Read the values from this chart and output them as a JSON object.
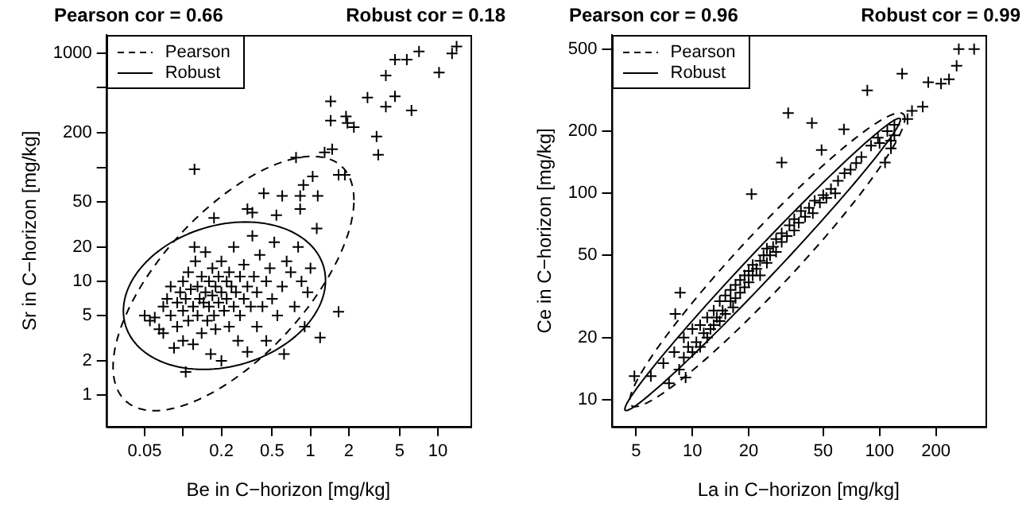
{
  "chart_data": [
    {
      "type": "scatter",
      "annotations": [
        "Pearson cor = 0.66",
        "Robust cor = 0.18",
        "Pearson",
        "Robust"
      ],
      "xlabel": "Be in C−horizon [mg/kg]",
      "ylabel": "Sr in C−horizon [mg/kg]",
      "log": "xy",
      "xlim": [
        0.025,
        18
      ],
      "ylim": [
        0.53,
        1450
      ],
      "xticks": [
        0.05,
        {
          "value": 0.1,
          "label": null
        },
        0.2,
        0.5,
        1,
        2,
        5,
        10
      ],
      "yticks": [
        1,
        2,
        5,
        10,
        20,
        50,
        {
          "value": 100,
          "label": null
        },
        200,
        {
          "value": 500,
          "label": null
        },
        1000
      ],
      "grid": false,
      "marker": "cross",
      "series": [
        {
          "color": "#000000",
          "x": [
            14,
            12.9,
            10.2,
            7.1,
            5.7,
            4.6,
            3.9,
            4.6,
            3.9,
            6.2,
            2.8,
            1.44,
            1.44,
            1.9,
            1.95,
            2.19,
            3.3,
            3.4,
            1.48,
            1.29,
            1.66,
            1.86,
            0.123,
            1.66,
            1.19,
            0.105,
            0.77,
            1.04,
            0.88,
            0.43,
            0.6,
            1.14,
            0.83,
            0.83,
            0.32,
            0.35,
            0.54,
            1.12,
            0.175,
            0.123,
            0.05,
            0.055,
            0.06,
            0.065,
            0.07,
            0.07,
            0.075,
            0.08,
            0.08,
            0.085,
            0.09,
            0.09,
            0.095,
            0.1,
            0.1,
            0.1,
            0.105,
            0.11,
            0.11,
            0.115,
            0.12,
            0.12,
            0.125,
            0.13,
            0.13,
            0.135,
            0.14,
            0.14,
            0.145,
            0.15,
            0.15,
            0.155,
            0.16,
            0.16,
            0.165,
            0.17,
            0.17,
            0.175,
            0.18,
            0.18,
            0.19,
            0.19,
            0.2,
            0.2,
            0.2,
            0.21,
            0.22,
            0.22,
            0.23,
            0.23,
            0.24,
            0.25,
            0.25,
            0.26,
            0.27,
            0.28,
            0.28,
            0.3,
            0.3,
            0.32,
            0.32,
            0.34,
            0.35,
            0.36,
            0.38,
            0.38,
            0.4,
            0.42,
            0.45,
            0.45,
            0.48,
            0.5,
            0.52,
            0.55,
            0.6,
            0.62,
            0.65,
            0.7,
            0.75,
            0.8,
            0.85,
            0.9,
            0.95,
            1.0
          ],
          "values": [
            1150,
            1000,
            680,
            1040,
            880,
            880,
            640,
            420,
            340,
            315,
            410,
            380,
            257,
            280,
            245,
            225,
            186,
            129,
            144,
            135,
            86,
            86,
            96,
            5.4,
            3.2,
            1.6,
            122,
            83,
            70,
            59,
            56,
            56,
            56,
            43,
            43,
            40,
            38,
            29,
            36,
            20,
            5,
            4.5,
            4.8,
            3.8,
            6,
            3.5,
            7,
            5,
            9,
            2.6,
            6.5,
            4,
            8,
            10,
            5.5,
            3,
            7,
            12,
            4.5,
            8.5,
            6,
            2.8,
            15,
            9,
            5,
            7,
            11,
            3.5,
            6.5,
            18,
            8,
            4.5,
            10,
            6,
            2.3,
            13,
            7.5,
            5,
            9,
            3.8,
            11,
            6.5,
            15,
            8,
            2,
            5.5,
            10,
            7,
            12,
            4,
            9,
            6,
            20,
            8,
            3,
            11,
            5,
            7,
            14,
            9,
            2.4,
            6,
            25,
            11,
            8,
            4,
            17,
            6,
            10,
            3,
            13,
            7,
            22,
            5,
            9,
            2.3,
            15,
            12,
            6,
            20,
            10,
            4,
            8,
            13
          ]
        }
      ]
    },
    {
      "type": "scatter",
      "annotations": [
        "Pearson cor = 0.96",
        "Robust cor = 0.99",
        "Pearson",
        "Robust"
      ],
      "xlabel": "La in C−horizon [mg/kg]",
      "ylabel": "Ce in C−horizon [mg/kg]",
      "log": "xy",
      "xlim": [
        3.7,
        368
      ],
      "ylim": [
        7.4,
        585
      ],
      "xticks": [
        5,
        10,
        20,
        50,
        100,
        200
      ],
      "yticks": [
        10,
        20,
        50,
        100,
        200,
        500
      ],
      "grid": false,
      "marker": "cross",
      "series": [
        {
          "color": "#000000",
          "x": [
            320,
            265,
            258,
            235,
            213,
            182,
            132,
            86,
            32.5,
            43.5,
            64.5,
            49,
            30,
            20.7,
            8.6,
            8.1,
            9.2,
            4.9,
            107,
            98,
            170,
            149,
            141,
            120,
            115,
            6,
            7,
            7.5,
            8,
            8.5,
            9,
            9,
            9.5,
            10,
            10,
            10.5,
            11,
            11,
            11.5,
            12,
            12,
            12.5,
            13,
            13,
            13.5,
            14,
            14,
            14.5,
            15,
            15,
            16,
            16,
            16.5,
            17,
            17,
            18,
            18,
            19,
            19,
            20,
            20,
            21,
            21,
            22,
            23,
            23,
            24,
            25,
            25,
            26,
            27,
            28,
            28,
            30,
            30,
            32,
            33,
            35,
            35,
            37,
            38,
            40,
            42,
            44,
            45,
            48,
            50,
            52,
            55,
            58,
            60,
            65,
            70,
            75,
            80,
            90,
            100,
            110,
            115,
            120
          ],
          "values": [
            500,
            500,
            415,
            357,
            340,
            345,
            380,
            315,
            245,
            219,
            204,
            162,
            141,
            99,
            33,
            26,
            12.8,
            13,
            141,
            186,
            263,
            251,
            229,
            191,
            165,
            13,
            15,
            12,
            17,
            14,
            20,
            16,
            18,
            22,
            17,
            19,
            23,
            18,
            21,
            25,
            20,
            22,
            27,
            23,
            25,
            30,
            24,
            27,
            32,
            26,
            30,
            34,
            28,
            36,
            31,
            33,
            38,
            35,
            40,
            37,
            42,
            40,
            45,
            43,
            47,
            40,
            50,
            46,
            54,
            50,
            55,
            52,
            60,
            58,
            64,
            62,
            70,
            66,
            75,
            72,
            82,
            77,
            85,
            80,
            92,
            90,
            98,
            95,
            105,
            100,
            115,
            125,
            130,
            140,
            150,
            170,
            175,
            200,
            180,
            215
          ]
        }
      ]
    }
  ]
}
